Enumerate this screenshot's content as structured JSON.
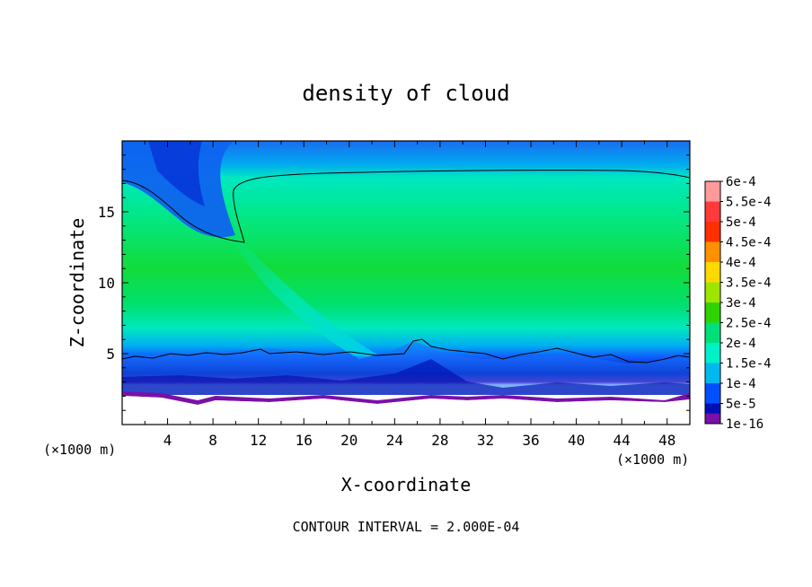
{
  "chart_data": {
    "type": "heatmap",
    "title": "density of cloud",
    "xlabel": "X-coordinate",
    "ylabel": "Z-coordinate",
    "x_unit": "(×1000 m)",
    "y_unit": "(×1000 m)",
    "xlim": [
      0,
      50
    ],
    "ylim": [
      0,
      20
    ],
    "x_ticks": [
      4,
      8,
      12,
      16,
      20,
      24,
      28,
      32,
      36,
      40,
      44,
      48
    ],
    "y_ticks": [
      5,
      10,
      15
    ],
    "footer": "CONTOUR INTERVAL = 2.000E-04",
    "colorbar": {
      "labels": [
        "6e-4",
        "5.5e-4",
        "5e-4",
        "4.5e-4",
        "4e-4",
        "3.5e-4",
        "3e-4",
        "2.5e-4",
        "2e-4",
        "1.5e-4",
        "1e-4",
        "5e-5",
        "1e-16"
      ],
      "colors": [
        "#ff9a9a",
        "#ff3a3a",
        "#ff2f00",
        "#ff9100",
        "#ffd800",
        "#9ee600",
        "#2fd400",
        "#00e07a",
        "#00f0c8",
        "#00b8f0",
        "#0050ff",
        "#0010b8",
        "#7a10a8"
      ]
    },
    "contour_levels": [
      0.0002
    ],
    "field_summary": [
      {
        "region": "z 5-17, x 0-50",
        "value": "2e-4 to 3.5e-4"
      },
      {
        "region": "z > 17.5",
        "value": "1e-4 to 2e-4"
      },
      {
        "region": "z 2.5-5",
        "value": "5e-5 to 1.5e-4"
      },
      {
        "region": "z 2-2.5",
        "value": "1e-16"
      }
    ]
  }
}
